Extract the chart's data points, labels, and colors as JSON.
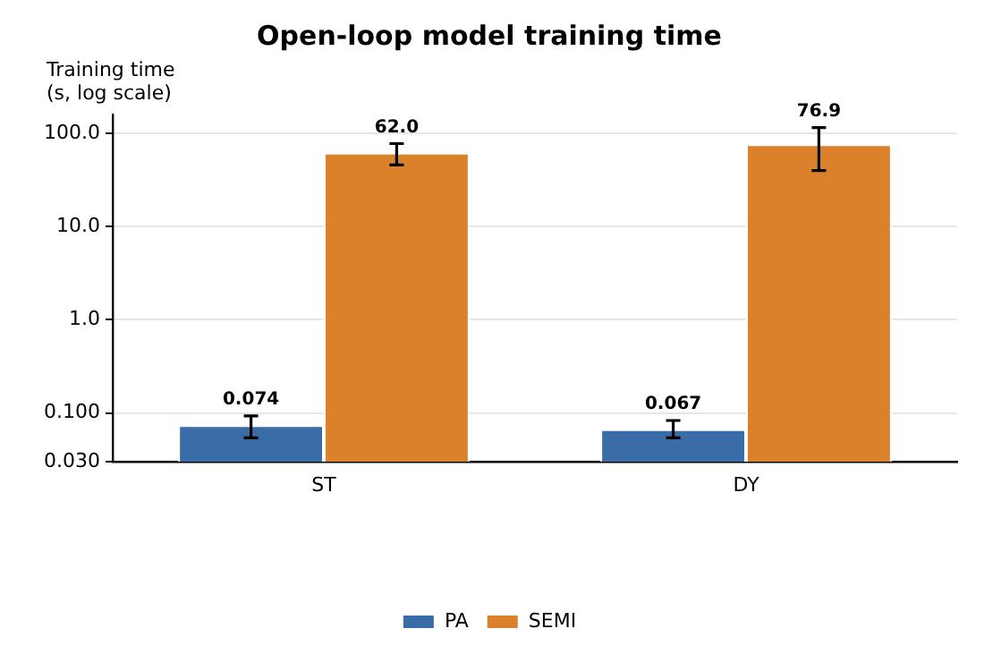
{
  "chart_data": {
    "type": "bar",
    "title": "Open-loop model training time",
    "ylabel": "Training time\n(s, log scale)",
    "categories": [
      "ST",
      "DY"
    ],
    "series": [
      {
        "name": "PA",
        "color": "#3a6ca8",
        "values": [
          0.074,
          0.067
        ],
        "errors": [
          [
            0.054,
            0.093
          ],
          [
            0.054,
            0.083
          ]
        ],
        "value_labels": [
          "0.074",
          "0.067"
        ]
      },
      {
        "name": "SEMI",
        "color": "#dc812b",
        "values": [
          62.0,
          76.9
        ],
        "errors": [
          [
            46,
            78
          ],
          [
            40,
            116
          ]
        ],
        "value_labels": [
          "62.0",
          "76.9"
        ]
      }
    ],
    "log": true,
    "ylim": [
      0.03,
      160
    ],
    "yticks": [
      {
        "value": 0.03,
        "label": "0.030"
      },
      {
        "value": 0.1,
        "label": "0.100"
      },
      {
        "value": 1,
        "label": "1.0"
      },
      {
        "value": 10,
        "label": "10.0"
      },
      {
        "value": 100,
        "label": "100.0"
      }
    ],
    "grid": "y",
    "legend": "bottom"
  }
}
